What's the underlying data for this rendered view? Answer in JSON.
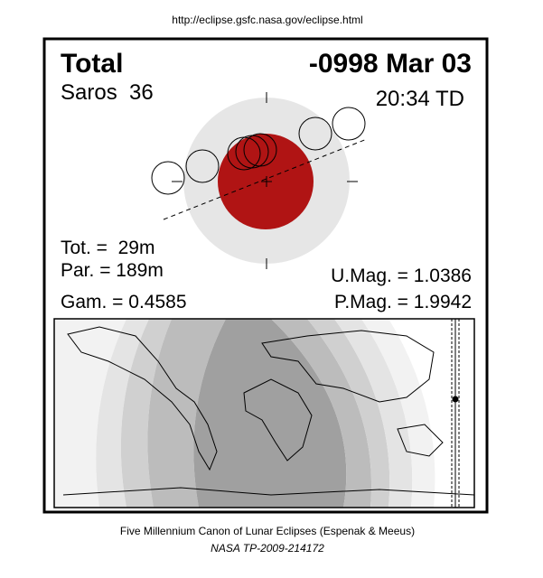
{
  "url": "http://eclipse.gsfc.nasa.gov/eclipse.html",
  "header": {
    "type": "Total",
    "date": "-0998 Mar 03",
    "saros": "Saros  36",
    "time": "20:34 TD"
  },
  "stats": {
    "tot": "Tot. =  29m",
    "par": "Par. = 189m",
    "gam": "Gam. = 0.4585",
    "umag": "U.Mag. = 1.0386",
    "pmag": "P.Mag. = 1.9942"
  },
  "footer": {
    "canon": "Five Millennium Canon of Lunar Eclipses (Espenak & Meeus)",
    "ref": "NASA TP-2009-214172"
  }
}
